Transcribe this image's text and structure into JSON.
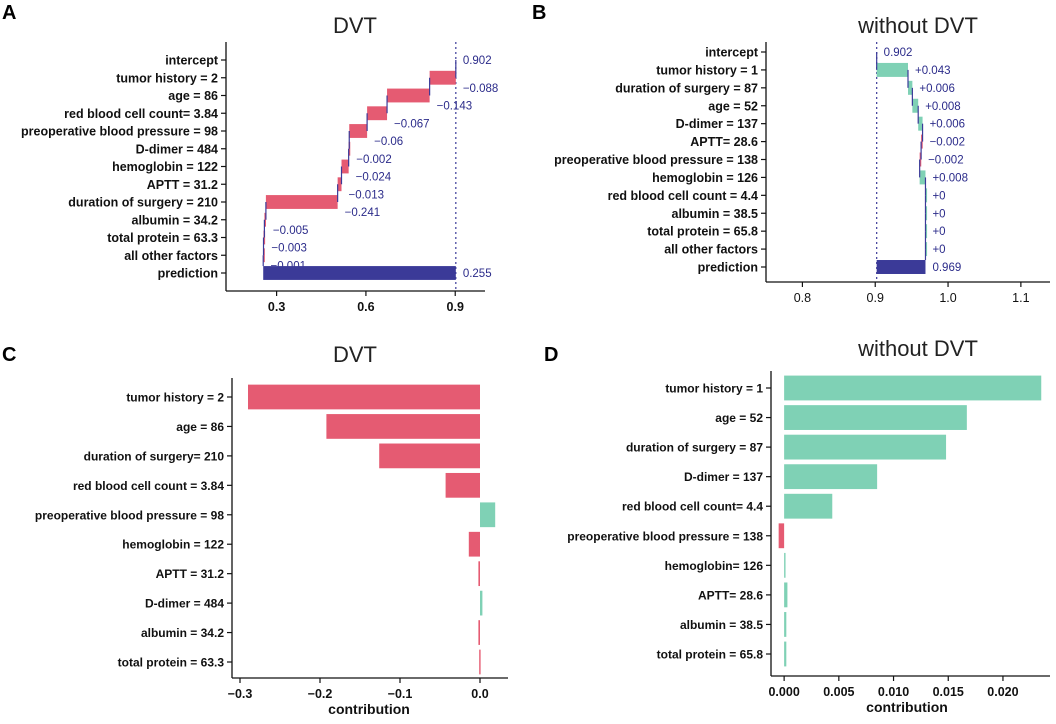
{
  "colors": {
    "negative": "#e55b72",
    "positive": "#7fd1b5",
    "prediction": "#3b3a98",
    "label": "#2b2b8a",
    "axis": "#111111"
  },
  "chart_data": [
    {
      "panel": "A",
      "type": "waterfall",
      "title": "DVT",
      "baseline": 0.902,
      "xlim": [
        0.13,
        1.0
      ],
      "xticks": [
        "0.3",
        "0.6",
        "0.9"
      ],
      "rows": [
        {
          "label": "intercept",
          "value_label": "0.902",
          "kind": "intercept"
        },
        {
          "label": "tumor history = 2",
          "value_label": "−0.088",
          "delta": -0.088
        },
        {
          "label": "age = 86",
          "value_label": "−0.143",
          "delta": -0.143
        },
        {
          "label": "red blood cell count= 3.84",
          "value_label": "−0.067",
          "delta": -0.067
        },
        {
          "label": "preoperative blood pressure = 98",
          "value_label": "−0.06",
          "delta": -0.06
        },
        {
          "label": "D-dimer = 484",
          "value_label": "−0.002",
          "delta": -0.002
        },
        {
          "label": "hemoglobin = 122",
          "value_label": "−0.024",
          "delta": -0.024
        },
        {
          "label": "APTT = 31.2",
          "value_label": "−0.013",
          "delta": -0.013
        },
        {
          "label": "duration of surgery = 210",
          "value_label": "−0.241",
          "delta": -0.241
        },
        {
          "label": "albumin = 34.2",
          "value_label": "−0.005",
          "delta": -0.005
        },
        {
          "label": "total protein = 63.3",
          "value_label": "−0.003",
          "delta": -0.003
        },
        {
          "label": "all other factors",
          "value_label": "−0.001",
          "delta": -0.001
        },
        {
          "label": "prediction",
          "value_label": "0.255",
          "kind": "prediction",
          "value": 0.255
        }
      ]
    },
    {
      "panel": "B",
      "type": "waterfall",
      "title": "without DVT",
      "baseline": 0.902,
      "xlim": [
        0.75,
        1.14
      ],
      "xticks": [
        "0.8",
        "0.9",
        "1.0",
        "1.1"
      ],
      "rows": [
        {
          "label": "intercept",
          "value_label": "0.902",
          "kind": "intercept"
        },
        {
          "label": "tumor history = 1",
          "value_label": "+0.043",
          "delta": 0.043
        },
        {
          "label": "duration of surgery = 87",
          "value_label": "+0.006",
          "delta": 0.006
        },
        {
          "label": "age = 52",
          "value_label": "+0.008",
          "delta": 0.008
        },
        {
          "label": "D-dimer = 137",
          "value_label": "+0.006",
          "delta": 0.006
        },
        {
          "label": "APTT= 28.6",
          "value_label": "−0.002",
          "delta": -0.002
        },
        {
          "label": "preoperative blood pressure = 138",
          "value_label": "−0.002",
          "delta": -0.002
        },
        {
          "label": "hemoglobin = 126",
          "value_label": "+0.008",
          "delta": 0.008
        },
        {
          "label": "red blood cell count = 4.4",
          "value_label": "+0",
          "delta": 0
        },
        {
          "label": "albumin = 38.5",
          "value_label": "+0",
          "delta": 0
        },
        {
          "label": "total protein = 65.8",
          "value_label": "+0",
          "delta": 0
        },
        {
          "label": "all other factors",
          "value_label": "+0",
          "delta": 0
        },
        {
          "label": "prediction",
          "value_label": "0.969",
          "kind": "prediction",
          "value": 0.969
        }
      ]
    },
    {
      "panel": "C",
      "type": "bar",
      "orientation": "horizontal",
      "title": "DVT",
      "xlabel": "contribution",
      "xlim": [
        -0.31,
        0.035
      ],
      "xticks": [
        {
          "v": -0.3,
          "t": "−0.3"
        },
        {
          "v": -0.2,
          "t": "−0.2"
        },
        {
          "v": -0.1,
          "t": "−0.1"
        },
        {
          "v": 0.0,
          "t": "0.0"
        }
      ],
      "categories": [
        "tumor history = 2",
        "age = 86",
        "duration of surgery= 210",
        "red blood cell count = 3.84",
        "preoperative blood pressure = 98",
        "hemoglobin = 122",
        "APTT = 31.2",
        "D-dimer = 484",
        "albumin = 34.2",
        "total protein = 63.3"
      ],
      "values": [
        -0.29,
        -0.192,
        -0.126,
        -0.043,
        0.019,
        -0.014,
        -0.002,
        0.003,
        -0.002,
        -0.001
      ]
    },
    {
      "panel": "D",
      "type": "bar",
      "orientation": "horizontal",
      "title": "without DVT",
      "xlabel": "contribution",
      "xlim": [
        -0.0012,
        0.0243
      ],
      "xticks": [
        {
          "v": 0.0,
          "t": "0.000"
        },
        {
          "v": 0.005,
          "t": "0.005"
        },
        {
          "v": 0.01,
          "t": "0.010"
        },
        {
          "v": 0.015,
          "t": "0.015"
        },
        {
          "v": 0.02,
          "t": "0.020"
        }
      ],
      "categories": [
        "tumor history = 1",
        "age = 52",
        "duration of surgery = 87",
        "D-dimer = 137",
        "red blood cell count= 4.4",
        "preoperative blood pressure = 138",
        "hemoglobin= 126",
        "APTT= 28.6",
        "albumin = 38.5",
        "total protein = 65.8"
      ],
      "values": [
        0.0235,
        0.0167,
        0.0148,
        0.0085,
        0.0044,
        -0.0005,
        0.0001,
        0.0003,
        0.0002,
        0.0002
      ]
    }
  ]
}
